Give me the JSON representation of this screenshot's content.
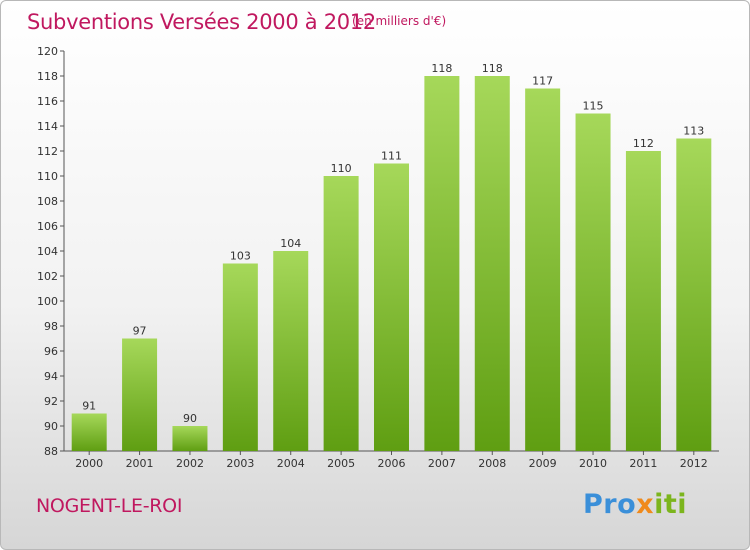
{
  "header": {
    "title": "Subventions Versées 2000 à 2012",
    "unit_note": "(en milliers d'€)"
  },
  "footer": {
    "commune": "NOGENT-LE-ROI",
    "brand_part1": "Pro",
    "brand_part2": "x",
    "brand_part3": "iti"
  },
  "colors": {
    "title": "#c0185f",
    "bar_top": "#a6d85a",
    "bar_bottom": "#5f9e12",
    "brand_blue": "#3a8fd9",
    "brand_orange": "#f08a1c",
    "brand_green": "#7cb51d"
  },
  "chart_data": {
    "type": "bar",
    "title": "Subventions Versées 2000 à 2012",
    "subtitle": "(en milliers d'€)",
    "xlabel": "",
    "ylabel": "",
    "ylim": [
      88,
      120
    ],
    "yticks": [
      88,
      90,
      92,
      94,
      96,
      98,
      100,
      102,
      104,
      106,
      108,
      110,
      112,
      114,
      116,
      118,
      120
    ],
    "grid": false,
    "categories": [
      "2000",
      "2001",
      "2002",
      "2003",
      "2004",
      "2005",
      "2006",
      "2007",
      "2008",
      "2009",
      "2010",
      "2011",
      "2012"
    ],
    "values": [
      91,
      97,
      90,
      103,
      104,
      110,
      111,
      118,
      118,
      117,
      115,
      112,
      113
    ]
  }
}
